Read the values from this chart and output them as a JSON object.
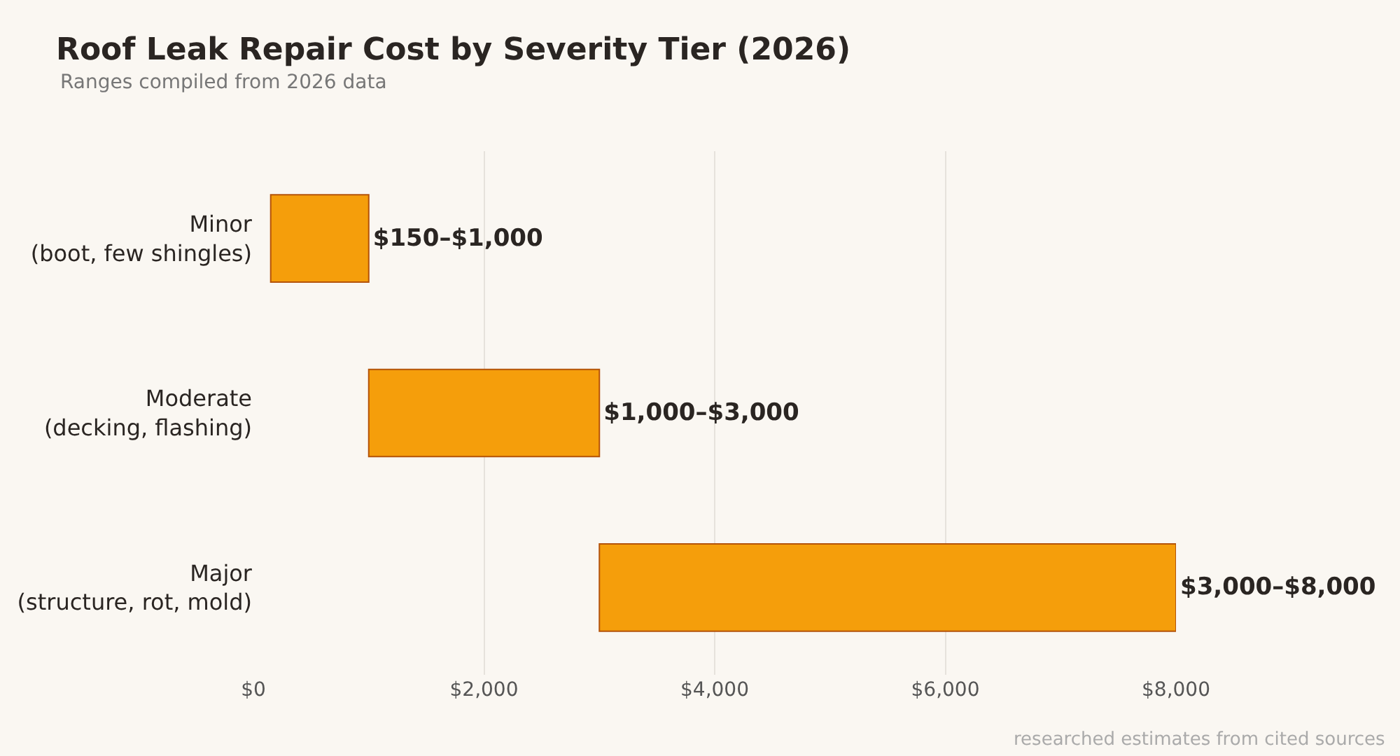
{
  "chart_data": {
    "type": "bar",
    "orientation": "horizontal",
    "title": "Roof Leak Repair Cost by Severity Tier (2026)",
    "subtitle": "Ranges compiled from 2026 data",
    "categories": [
      "Minor\n(boot, few shingles)",
      "Moderate\n(decking, flashing)",
      "Major\n(structure, rot, mold)"
    ],
    "base": [
      150,
      1000,
      3000
    ],
    "values": [
      850,
      2000,
      5000
    ],
    "value_labels": [
      "$150–$1,000",
      "$1,000–$3,000",
      "$3,000–$8,000"
    ],
    "color": "#f59e0b",
    "xlim": [
      0,
      8000
    ],
    "xticks": [
      {
        "value": 0,
        "label": "$0"
      },
      {
        "value": 2000,
        "label": "$2,000"
      },
      {
        "value": 4000,
        "label": "$4,000"
      },
      {
        "value": 6000,
        "label": "$6,000"
      },
      {
        "value": 8000,
        "label": "$8,000"
      }
    ],
    "grid": "x",
    "legend": false,
    "annotations": [
      "researched estimates from cited sources"
    ]
  }
}
